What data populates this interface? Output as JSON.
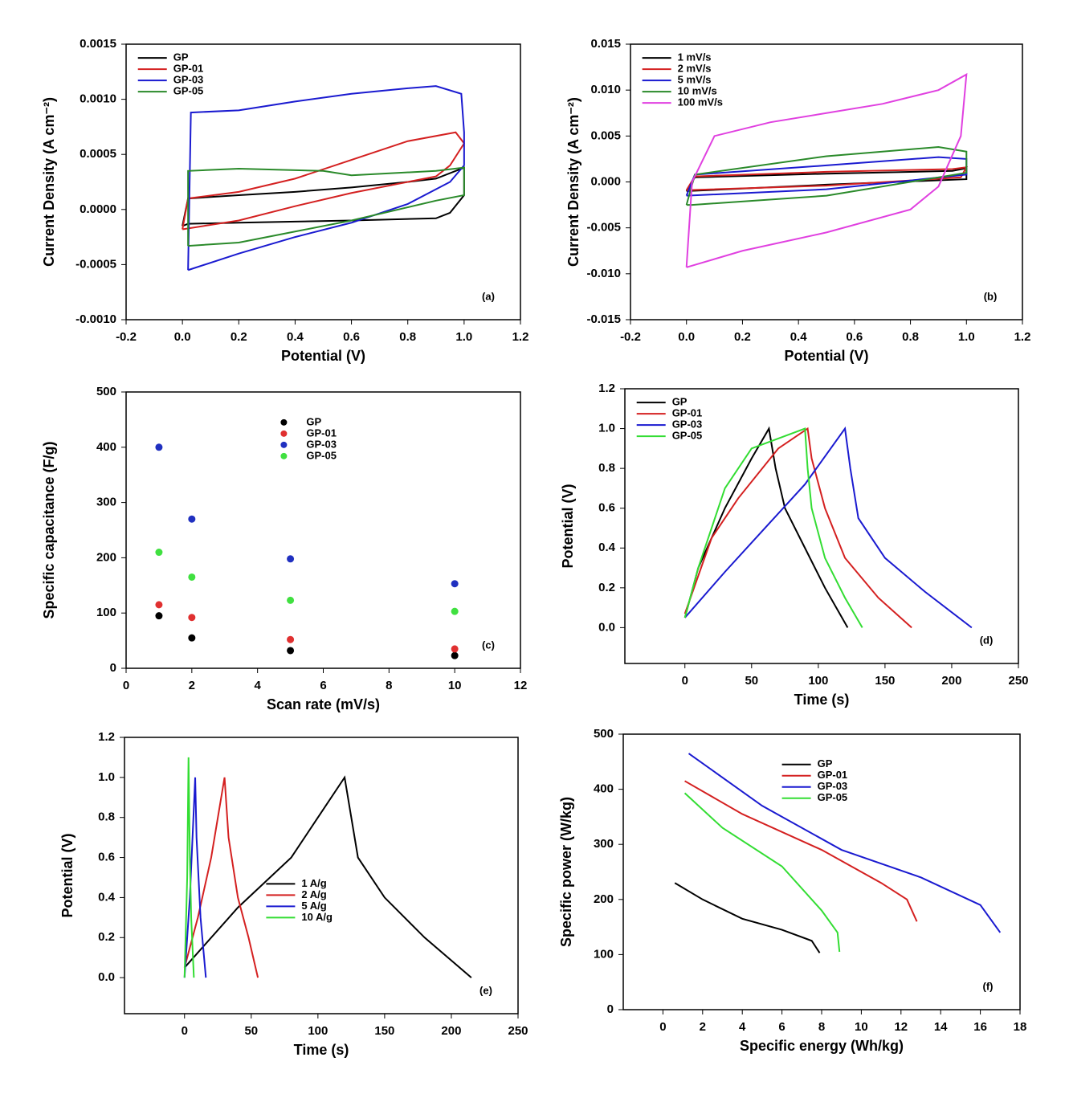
{
  "chart_data": [
    {
      "type": "line",
      "x_label": "Potential (V)",
      "y_label": "Current Density (A cm⁻²)",
      "annotation": "(a)",
      "legend": "upper left",
      "xlim": [
        -0.2,
        1.2
      ],
      "ylim": [
        -0.001,
        0.0015
      ],
      "xticks": [
        -0.2,
        {
          "value": 0,
          "label": "0.0"
        },
        0.2,
        0.4,
        0.6,
        0.8,
        {
          "value": 1,
          "label": "1.0"
        },
        1.2
      ],
      "yticks": [
        {
          "value": -0.001,
          "label": "-0.0010"
        },
        {
          "value": -0.0005,
          "label": "-0.0005"
        },
        {
          "value": 0,
          "label": "0.0000"
        },
        {
          "value": 0.0005,
          "label": "0.0005"
        },
        {
          "value": 0.001,
          "label": "0.0010"
        },
        {
          "value": 0.0015,
          "label": "0.0015"
        }
      ],
      "series": [
        {
          "name": "GP",
          "color": "#000000",
          "x": [
            0,
            0.02,
            0.2,
            0.4,
            0.6,
            0.8,
            0.9,
            1.0,
            1.0,
            0.95,
            0.9,
            0.6,
            0.4,
            0.2,
            0.02,
            0
          ],
          "values": [
            -0.00015,
            0.0001,
            0.00013,
            0.00016,
            0.0002,
            0.00025,
            0.00028,
            0.00038,
            0.00013,
            -3e-05,
            -8e-05,
            -0.0001,
            -0.00011,
            -0.00012,
            -0.00013,
            -0.00015
          ]
        },
        {
          "name": "GP-01",
          "color": "#d42020",
          "x": [
            0,
            0.02,
            0.2,
            0.4,
            0.6,
            0.8,
            0.97,
            1.0,
            0.95,
            0.9,
            0.6,
            0.4,
            0.2,
            0
          ],
          "values": [
            -0.00018,
            0.0001,
            0.00016,
            0.00028,
            0.00045,
            0.00062,
            0.0007,
            0.0006,
            0.0004,
            0.0003,
            0.00015,
            3e-05,
            -0.0001,
            -0.00018
          ]
        },
        {
          "name": "GP-03",
          "color": "#1a1ad0",
          "x": [
            0.02,
            0.03,
            0.2,
            0.4,
            0.6,
            0.8,
            0.9,
            0.99,
            1.0,
            1.0,
            0.95,
            0.8,
            0.6,
            0.4,
            0.2,
            0.02
          ],
          "values": [
            -0.00055,
            0.00088,
            0.0009,
            0.00098,
            0.00105,
            0.0011,
            0.00112,
            0.00105,
            0.0007,
            0.0004,
            0.00025,
            5e-05,
            -0.00012,
            -0.00025,
            -0.0004,
            -0.00055
          ]
        },
        {
          "name": "GP-05",
          "color": "#2a8a2a",
          "x": [
            0.02,
            0.02,
            0.2,
            0.5,
            0.6,
            0.9,
            1.0,
            1.0,
            0.9,
            0.6,
            0.4,
            0.2,
            0.02
          ],
          "values": [
            -0.00033,
            0.00035,
            0.00037,
            0.00035,
            0.00031,
            0.00035,
            0.00038,
            0.00013,
            8e-05,
            -0.0001,
            -0.0002,
            -0.0003,
            -0.00033
          ]
        }
      ]
    },
    {
      "type": "line",
      "x_label": "Potential (V)",
      "y_label": "Current Density (A cm⁻²)",
      "annotation": "(b)",
      "legend": "upper left",
      "xlim": [
        -0.2,
        1.2
      ],
      "ylim": [
        -0.015,
        0.015
      ],
      "xticks": [
        -0.2,
        {
          "value": 0,
          "label": "0.0"
        },
        0.2,
        0.4,
        0.6,
        0.8,
        {
          "value": 1,
          "label": "1.0"
        },
        1.2
      ],
      "yticks": [
        {
          "value": -0.015,
          "label": "-0.015"
        },
        {
          "value": -0.01,
          "label": "-0.010"
        },
        -0.005,
        {
          "value": 0,
          "label": "0.000"
        },
        0.005,
        {
          "value": 0.01,
          "label": "0.010"
        },
        0.015
      ],
      "series": [
        {
          "name": "1 mV/s",
          "color": "#000000",
          "x": [
            0,
            0.03,
            0.5,
            0.95,
            1.0,
            1.0,
            0.5,
            0
          ],
          "values": [
            -0.001,
            0.0005,
            0.0009,
            0.0012,
            0.0015,
            0.0003,
            -0.0003,
            -0.001
          ]
        },
        {
          "name": "2 mV/s",
          "color": "#d42020",
          "x": [
            0,
            0.03,
            0.5,
            0.95,
            1.0,
            0.98,
            0.5,
            0
          ],
          "values": [
            -0.0009,
            0.0006,
            0.0011,
            0.0014,
            0.0016,
            0.0005,
            -0.0004,
            -0.0009
          ]
        },
        {
          "name": "5 mV/s",
          "color": "#1a1ad0",
          "x": [
            0,
            0.03,
            0.5,
            0.9,
            1.0,
            1.0,
            0.5,
            0
          ],
          "values": [
            -0.0015,
            0.0008,
            0.0018,
            0.0027,
            0.0025,
            0.0008,
            -0.0008,
            -0.0015
          ]
        },
        {
          "name": "10 mV/s",
          "color": "#2a8a2a",
          "x": [
            0,
            0.03,
            0.5,
            0.9,
            1.0,
            1.0,
            0.5,
            0.02,
            0
          ],
          "values": [
            -0.0025,
            0.0008,
            0.0028,
            0.0038,
            0.0033,
            0.001,
            -0.0015,
            -0.0025,
            -0.0025
          ]
        },
        {
          "name": "100 mV/s",
          "color": "#e040e0",
          "x": [
            0,
            0.02,
            0.1,
            0.3,
            0.5,
            0.7,
            0.9,
            1.0,
            0.98,
            0.9,
            0.8,
            0.5,
            0.2,
            0
          ],
          "values": [
            -0.0093,
            0,
            0.005,
            0.0065,
            0.0075,
            0.0085,
            0.01,
            0.0117,
            0.005,
            -0.0005,
            -0.003,
            -0.0055,
            -0.0075,
            -0.0093
          ]
        }
      ]
    },
    {
      "type": "scatter",
      "x_label": "Scan rate (mV/s)",
      "y_label": "Specific capacitance (F/g)",
      "annotation": "(c)",
      "legend": "upper center",
      "xlim": [
        0,
        12
      ],
      "ylim": [
        0,
        500
      ],
      "xticks": [
        0,
        2,
        4,
        6,
        8,
        10,
        12
      ],
      "yticks": [
        0,
        100,
        200,
        300,
        400,
        500
      ],
      "series": [
        {
          "name": "GP",
          "color": "#000000",
          "x": [
            1,
            2,
            5,
            10
          ],
          "values": [
            95,
            55,
            32,
            23
          ]
        },
        {
          "name": "GP-01",
          "color": "#e03030",
          "x": [
            1,
            2,
            5,
            10
          ],
          "values": [
            115,
            92,
            52,
            35
          ]
        },
        {
          "name": "GP-03",
          "color": "#2030c0",
          "x": [
            1,
            2,
            5,
            10
          ],
          "values": [
            400,
            270,
            198,
            153
          ]
        },
        {
          "name": "GP-05",
          "color": "#40e040",
          "x": [
            1,
            2,
            5,
            10
          ],
          "values": [
            210,
            165,
            123,
            103
          ]
        }
      ]
    },
    {
      "type": "line",
      "x_label": "Time (s)",
      "y_label": "Potential (V)",
      "annotation": "(d)",
      "legend": "upper left",
      "xlim": [
        -45,
        250
      ],
      "ylim": [
        -0.18,
        1.2
      ],
      "xticks": [
        0,
        50,
        100,
        150,
        200,
        250
      ],
      "yticks": [
        {
          "value": 0,
          "label": "0.0"
        },
        0.2,
        0.4,
        0.6,
        0.8,
        {
          "value": 1,
          "label": "1.0"
        },
        1.2
      ],
      "series": [
        {
          "name": "GP",
          "color": "#000000",
          "x": [
            0,
            10,
            30,
            50,
            63,
            68,
            75,
            90,
            105,
            122
          ],
          "values": [
            0.05,
            0.3,
            0.6,
            0.85,
            1.0,
            0.8,
            0.6,
            0.4,
            0.2,
            0
          ]
        },
        {
          "name": "GP-01",
          "color": "#d42020",
          "x": [
            0,
            20,
            40,
            70,
            92,
            95,
            105,
            120,
            145,
            170
          ],
          "values": [
            0.07,
            0.45,
            0.65,
            0.9,
            1.0,
            0.85,
            0.6,
            0.35,
            0.15,
            0
          ]
        },
        {
          "name": "GP-03",
          "color": "#1a1ad0",
          "x": [
            0,
            30,
            60,
            90,
            120,
            124,
            130,
            150,
            180,
            215
          ],
          "values": [
            0.05,
            0.28,
            0.5,
            0.72,
            1.0,
            0.8,
            0.55,
            0.35,
            0.18,
            0
          ]
        },
        {
          "name": "GP-05",
          "color": "#33dd33",
          "x": [
            0,
            10,
            30,
            50,
            90,
            92,
            95,
            105,
            120,
            133
          ],
          "values": [
            0.05,
            0.3,
            0.7,
            0.9,
            1.0,
            0.8,
            0.6,
            0.35,
            0.15,
            0
          ]
        }
      ]
    },
    {
      "type": "line",
      "x_label": "Time (s)",
      "y_label": "Potential (V)",
      "annotation": "(e)",
      "legend": "center",
      "xlim": [
        -45,
        250
      ],
      "ylim": [
        -0.18,
        1.2
      ],
      "xticks": [
        0,
        50,
        100,
        150,
        200,
        250
      ],
      "yticks": [
        {
          "value": 0,
          "label": "0.0"
        },
        0.2,
        0.4,
        0.6,
        0.8,
        {
          "value": 1,
          "label": "1.0"
        },
        1.2
      ],
      "series": [
        {
          "name": "1 A/g",
          "color": "#000000",
          "x": [
            0,
            40,
            80,
            100,
            120,
            130,
            150,
            180,
            215
          ],
          "values": [
            0.05,
            0.35,
            0.6,
            0.8,
            1.0,
            0.6,
            0.4,
            0.2,
            0
          ]
        },
        {
          "name": "2 A/g",
          "color": "#d42020",
          "x": [
            0,
            10,
            20,
            30,
            33,
            40,
            48,
            55
          ],
          "values": [
            0.05,
            0.3,
            0.6,
            1.0,
            0.7,
            0.4,
            0.2,
            0
          ]
        },
        {
          "name": "5 A/g",
          "color": "#1a1ad0",
          "x": [
            0,
            4,
            8,
            9,
            12,
            16
          ],
          "values": [
            0,
            0.4,
            1.0,
            0.7,
            0.3,
            0
          ]
        },
        {
          "name": "10 A/g",
          "color": "#33dd33",
          "x": [
            0,
            2,
            3,
            4,
            5,
            7
          ],
          "values": [
            0,
            0.5,
            1.1,
            0.6,
            0.3,
            0
          ]
        }
      ]
    },
    {
      "type": "line",
      "x_label": "Specific energy (Wh/kg)",
      "y_label": "Specific power (W/kg)",
      "annotation": "(f)",
      "legend": "upper center",
      "xlim": [
        -2,
        18
      ],
      "ylim": [
        0,
        500
      ],
      "xticks": [
        0,
        2,
        4,
        6,
        8,
        10,
        12,
        14,
        16,
        18
      ],
      "yticks": [
        0,
        100,
        200,
        300,
        400,
        500
      ],
      "series": [
        {
          "name": "GP",
          "color": "#000000",
          "x": [
            0.6,
            2,
            4,
            6,
            7.5,
            7.9
          ],
          "values": [
            230,
            200,
            165,
            145,
            125,
            103
          ]
        },
        {
          "name": "GP-01",
          "color": "#d42020",
          "x": [
            1.1,
            4,
            8,
            11,
            12.3,
            12.8
          ],
          "values": [
            415,
            355,
            290,
            230,
            200,
            160
          ]
        },
        {
          "name": "GP-03",
          "color": "#1a1ad0",
          "x": [
            1.3,
            5,
            9,
            13,
            16,
            17
          ],
          "values": [
            465,
            370,
            290,
            240,
            190,
            140
          ]
        },
        {
          "name": "GP-05",
          "color": "#33dd33",
          "x": [
            1.1,
            3,
            6,
            8,
            8.8,
            8.9
          ],
          "values": [
            393,
            330,
            260,
            180,
            140,
            105
          ]
        }
      ]
    }
  ]
}
